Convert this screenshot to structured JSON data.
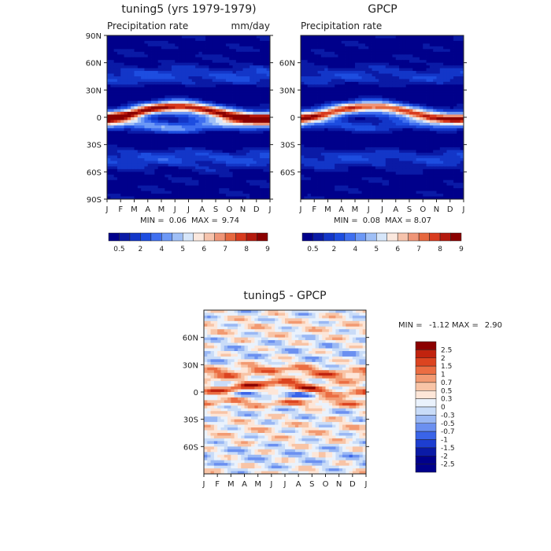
{
  "palettes": {
    "precip": [
      "#00008b",
      "#0a1aa6",
      "#1336c8",
      "#1d4de0",
      "#3f6ff0",
      "#6c98f6",
      "#9fbff6",
      "#d6e6fa",
      "#fbe8de",
      "#f6c3ac",
      "#ef9577",
      "#e6683f",
      "#d83b1e",
      "#b51a0e",
      "#8b0000"
    ],
    "diff": [
      "#00008b",
      "#0a1aa6",
      "#1d3ed0",
      "#3a64e8",
      "#6b90f0",
      "#9ab8f4",
      "#c9dcf8",
      "#eaf2fc",
      "#fde6d8",
      "#f8c4a6",
      "#f29a72",
      "#eb6d42",
      "#dc4420",
      "#c1230e",
      "#8b0000"
    ]
  },
  "panels": {
    "model": {
      "title": "tuning5 (yrs 1979-1979)",
      "subtitle": "Precipitation rate",
      "units": "mm/day",
      "min_label": "MIN =",
      "min_value": "0.06",
      "max_label": "MAX =",
      "max_value": "9.74"
    },
    "obs": {
      "title": "GPCP",
      "subtitle": "Precipitation rate",
      "min_label": "MIN =",
      "min_value": "0.08",
      "max_label": "MAX =",
      "max_value": "8.07"
    },
    "diff": {
      "title": "tuning5 - GPCP",
      "min_label": "MIN =",
      "min_value": "-1.12",
      "max_label": "MAX =",
      "max_value": "2.90"
    }
  },
  "chart_data": [
    {
      "type": "heatmap",
      "title": "tuning5 (yrs 1979-1979)",
      "subtitle": "Precipitation rate",
      "units": "mm/day",
      "x_ticks": [
        "J",
        "F",
        "M",
        "A",
        "M",
        "J",
        "J",
        "A",
        "S",
        "O",
        "N",
        "D",
        "J"
      ],
      "y_ticks": [
        "90N",
        "60N",
        "30N",
        "0",
        "30S",
        "60S",
        "90S"
      ],
      "ylim": [
        -90,
        90
      ],
      "colorbar_ticks": [
        "0.5",
        "2",
        "4",
        "5",
        "6",
        "7",
        "8",
        "9"
      ],
      "min": 0.06,
      "max": 9.74
    },
    {
      "type": "heatmap",
      "title": "GPCP",
      "subtitle": "Precipitation rate",
      "x_ticks": [
        "J",
        "F",
        "M",
        "A",
        "M",
        "J",
        "J",
        "A",
        "S",
        "O",
        "N",
        "D",
        "J"
      ],
      "y_ticks": [
        "60N",
        "30N",
        "0",
        "30S",
        "60S"
      ],
      "ylim": [
        -90,
        90
      ],
      "colorbar_ticks": [
        "0.5",
        "2",
        "4",
        "5",
        "6",
        "7",
        "8",
        "9"
      ],
      "min": 0.08,
      "max": 8.07
    },
    {
      "type": "heatmap",
      "title": "tuning5 - GPCP",
      "x_ticks": [
        "J",
        "F",
        "M",
        "A",
        "M",
        "J",
        "J",
        "A",
        "S",
        "O",
        "N",
        "D",
        "J"
      ],
      "y_ticks": [
        "60N",
        "30N",
        "0",
        "30S",
        "60S"
      ],
      "ylim": [
        -90,
        90
      ],
      "colorbar_ticks": [
        "2.5",
        "2",
        "1.5",
        "1",
        "0.7",
        "0.5",
        "0.3",
        "0",
        "-0.3",
        "-0.5",
        "-0.7",
        "-1",
        "-1.5",
        "-2",
        "-2.5"
      ],
      "min": -1.12,
      "max": 2.9
    }
  ]
}
